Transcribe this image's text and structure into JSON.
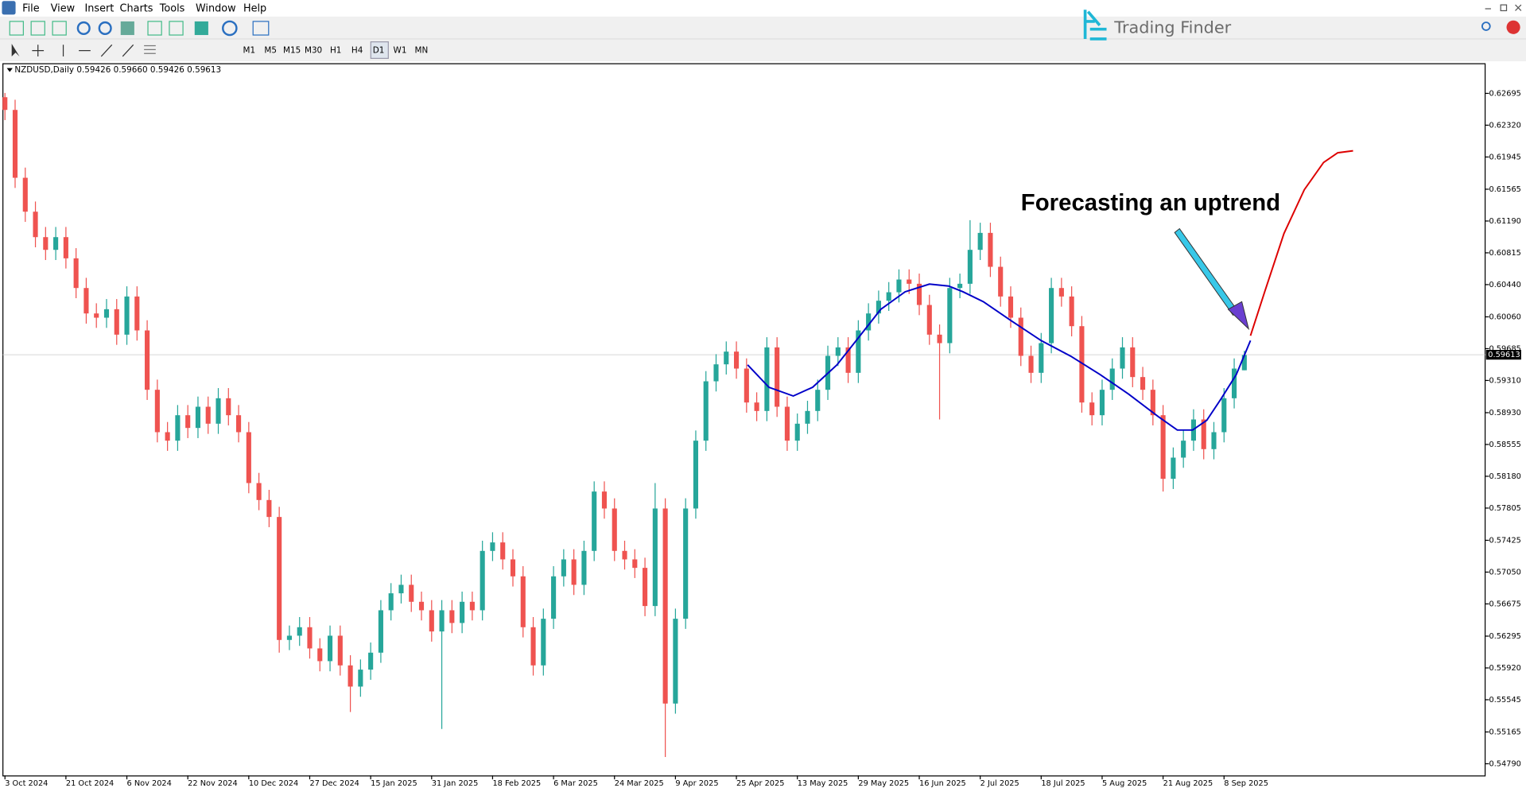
{
  "menu": [
    "File",
    "View",
    "Insert",
    "Charts",
    "Tools",
    "Window",
    "Help"
  ],
  "timeframes": [
    "M1",
    "M5",
    "M15",
    "M30",
    "H1",
    "H4",
    "D1",
    "W1",
    "MN"
  ],
  "logo": "Trading Finder",
  "chart_data": {
    "type": "candlestick",
    "title": "NZDUSD,Daily  0.59426 0.59660 0.59426 0.59613",
    "annotation": "Forecasting an uptrend",
    "up_color": "#26a69a",
    "down_color": "#ef5350",
    "current_price": 0.59613,
    "open": [
      0.6265,
      0.625,
      0.617,
      0.613,
      0.61,
      0.6085,
      0.61,
      0.6075,
      0.604,
      0.601,
      0.6005,
      0.6015,
      0.5985,
      0.603,
      0.599,
      0.592,
      0.587,
      0.586,
      0.589,
      0.5875,
      0.59,
      0.588,
      0.591,
      0.589,
      0.587,
      0.581,
      0.579,
      0.577,
      0.5625,
      0.563,
      0.564,
      0.5615,
      0.56,
      0.563,
      0.5595,
      0.557,
      0.559,
      0.561,
      0.566,
      0.568,
      0.569,
      0.567,
      0.566,
      0.5635,
      0.566,
      0.5645,
      0.567,
      0.566,
      0.573,
      0.574,
      0.572,
      0.57,
      0.564,
      0.5595,
      0.565,
      0.57,
      0.572,
      0.569,
      0.573,
      0.58,
      0.578,
      0.573,
      0.572,
      0.571,
      0.5665,
      0.578,
      0.555,
      0.565,
      0.578,
      0.586,
      0.593,
      0.595,
      0.5965,
      0.5945,
      0.5905,
      0.5895,
      0.597,
      0.59,
      0.586,
      0.588,
      0.5895,
      0.592,
      0.596,
      0.597,
      0.594,
      0.599,
      0.601,
      0.6025,
      0.6035,
      0.605,
      0.6045,
      0.602,
      0.5985,
      0.5975,
      0.604,
      0.6045,
      0.6085,
      0.6105,
      0.6065,
      0.603,
      0.6005,
      0.596,
      0.594,
      0.5975,
      0.604,
      0.603,
      0.5995,
      0.5905,
      0.589,
      0.592,
      0.5945,
      0.597,
      0.5935,
      0.592,
      0.589,
      0.5815,
      0.584,
      0.586,
      0.5885,
      0.585,
      0.587,
      0.591,
      0.5943
    ],
    "high": [
      0.627,
      0.6262,
      0.6182,
      0.6142,
      0.6112,
      0.6112,
      0.6112,
      0.6087,
      0.6052,
      0.6022,
      0.6027,
      0.6027,
      0.6042,
      0.6042,
      0.6002,
      0.5932,
      0.5882,
      0.5902,
      0.5902,
      0.5912,
      0.5912,
      0.5922,
      0.5922,
      0.5902,
      0.5882,
      0.5822,
      0.5802,
      0.5782,
      0.5642,
      0.5652,
      0.5652,
      0.5627,
      0.5642,
      0.5642,
      0.5607,
      0.5602,
      0.5622,
      0.5672,
      0.5692,
      0.5702,
      0.5702,
      0.5682,
      0.5672,
      0.5672,
      0.5672,
      0.5682,
      0.5682,
      0.5742,
      0.5752,
      0.5752,
      0.5732,
      0.5712,
      0.5652,
      0.5662,
      0.5712,
      0.5732,
      0.5732,
      0.5742,
      0.5812,
      0.5812,
      0.5792,
      0.5742,
      0.5732,
      0.5722,
      0.581,
      0.5792,
      0.5662,
      0.5792,
      0.5872,
      0.5942,
      0.5962,
      0.5977,
      0.5977,
      0.5957,
      0.5917,
      0.5982,
      0.5982,
      0.5912,
      0.5892,
      0.5907,
      0.5932,
      0.5972,
      0.5982,
      0.5982,
      0.6002,
      0.6022,
      0.6037,
      0.6047,
      0.6062,
      0.6062,
      0.6057,
      0.6032,
      0.5997,
      0.6052,
      0.6057,
      0.612,
      0.6117,
      0.6117,
      0.6077,
      0.6042,
      0.6017,
      0.5972,
      0.5987,
      0.6052,
      0.6052,
      0.6042,
      0.6007,
      0.5917,
      0.5932,
      0.5957,
      0.5982,
      0.5982,
      0.5947,
      0.5932,
      0.5902,
      0.5852,
      0.5872,
      0.5897,
      0.5897,
      0.5882,
      0.5922,
      0.5957,
      0.5966
    ],
    "low": [
      0.6238,
      0.6158,
      0.6118,
      0.6088,
      0.6073,
      0.6073,
      0.6063,
      0.6028,
      0.5998,
      0.5993,
      0.5993,
      0.5973,
      0.5973,
      0.5978,
      0.5908,
      0.5858,
      0.5848,
      0.5848,
      0.5863,
      0.5863,
      0.5868,
      0.5868,
      0.5878,
      0.5858,
      0.5798,
      0.5778,
      0.5758,
      0.561,
      0.5613,
      0.5618,
      0.5603,
      0.5588,
      0.5588,
      0.5583,
      0.554,
      0.5558,
      0.5578,
      0.5598,
      0.5648,
      0.5668,
      0.5658,
      0.5648,
      0.5623,
      0.552,
      0.5633,
      0.5633,
      0.5648,
      0.5648,
      0.5718,
      0.5708,
      0.5688,
      0.5628,
      0.5583,
      0.5583,
      0.5638,
      0.5688,
      0.5678,
      0.5678,
      0.5718,
      0.5768,
      0.5718,
      0.5708,
      0.5698,
      0.5653,
      0.5653,
      0.5487,
      0.5538,
      0.5638,
      0.5768,
      0.5848,
      0.5918,
      0.5938,
      0.5933,
      0.5893,
      0.5883,
      0.5883,
      0.5888,
      0.5848,
      0.5848,
      0.5868,
      0.5883,
      0.5908,
      0.5948,
      0.5928,
      0.5928,
      0.5978,
      0.5998,
      0.6013,
      0.6023,
      0.6033,
      0.6008,
      0.5973,
      0.5885,
      0.5963,
      0.6028,
      0.6033,
      0.6073,
      0.6053,
      0.6018,
      0.5993,
      0.5948,
      0.5928,
      0.5928,
      0.5963,
      0.6018,
      0.5983,
      0.5893,
      0.5878,
      0.5878,
      0.5908,
      0.5933,
      0.5923,
      0.5908,
      0.5878,
      0.58,
      0.5803,
      0.5828,
      0.5848,
      0.5838,
      0.5838,
      0.5858,
      0.5898,
      0.5943
    ],
    "close": [
      0.625,
      0.617,
      0.613,
      0.61,
      0.6085,
      0.61,
      0.6075,
      0.604,
      0.601,
      0.6005,
      0.6015,
      0.5985,
      0.603,
      0.599,
      0.592,
      0.587,
      0.586,
      0.589,
      0.5875,
      0.59,
      0.588,
      0.591,
      0.589,
      0.587,
      0.581,
      0.579,
      0.577,
      0.5625,
      0.563,
      0.564,
      0.5615,
      0.56,
      0.563,
      0.5595,
      0.557,
      0.559,
      0.561,
      0.566,
      0.568,
      0.569,
      0.567,
      0.566,
      0.5635,
      0.566,
      0.5645,
      0.567,
      0.566,
      0.573,
      0.574,
      0.572,
      0.57,
      0.564,
      0.5595,
      0.565,
      0.57,
      0.572,
      0.569,
      0.573,
      0.58,
      0.578,
      0.573,
      0.572,
      0.571,
      0.5665,
      0.578,
      0.555,
      0.565,
      0.578,
      0.586,
      0.593,
      0.595,
      0.5965,
      0.5945,
      0.5905,
      0.5895,
      0.597,
      0.59,
      0.586,
      0.588,
      0.5895,
      0.592,
      0.596,
      0.597,
      0.594,
      0.599,
      0.601,
      0.6025,
      0.6035,
      0.605,
      0.6045,
      0.602,
      0.5985,
      0.5975,
      0.604,
      0.6045,
      0.6085,
      0.6105,
      0.6065,
      0.603,
      0.6005,
      0.596,
      0.594,
      0.5975,
      0.604,
      0.603,
      0.5995,
      0.5905,
      0.589,
      0.592,
      0.5945,
      0.597,
      0.5935,
      0.592,
      0.589,
      0.5815,
      0.584,
      0.586,
      0.5885,
      0.585,
      0.587,
      0.591,
      0.5945,
      0.5961
    ],
    "lines": [
      {
        "color": "#0000c8",
        "x": [
          73.1,
          75.2,
          77.6,
          79.5,
          81.9,
          83.8,
          86.2,
          88.6,
          91.0,
          92.9,
          94.3,
          96.3,
          99.1,
          102.0,
          104.9,
          107.8,
          110.6,
          113.5,
          115.4,
          116.9,
          118.3,
          119.7,
          121.2,
          122.6
        ],
        "values": [
          0.59494,
          0.5923,
          0.59127,
          0.5923,
          0.59494,
          0.59781,
          0.60148,
          0.60355,
          0.60446,
          0.60423,
          0.60355,
          0.6024,
          0.6001,
          0.59781,
          0.59597,
          0.59379,
          0.5915,
          0.58886,
          0.58725,
          0.58725,
          0.5884,
          0.59092,
          0.59379,
          0.59781
        ]
      },
      {
        "color": "#dd0000",
        "x": [
          122.6,
          124.0,
          125.9,
          127.9,
          129.8,
          131.2,
          132.7
        ],
        "values": [
          0.59838,
          0.60355,
          0.61043,
          0.61559,
          0.6188,
          0.61995,
          0.62018
        ]
      }
    ],
    "xlim": [
      -0.2,
      145.7
    ],
    "ylim": [
      0.54652,
      0.63039
    ],
    "xticks": [
      {
        "value": 0,
        "label": "3 Oct 2024"
      },
      {
        "value": 6,
        "label": "21 Oct 2024"
      },
      {
        "value": 12,
        "label": "6 Nov 2024"
      },
      {
        "value": 18,
        "label": "22 Nov 2024"
      },
      {
        "value": 24,
        "label": "10 Dec 2024"
      },
      {
        "value": 30,
        "label": "27 Dec 2024"
      },
      {
        "value": 36,
        "label": "15 Jan 2025"
      },
      {
        "value": 42,
        "label": "31 Jan 2025"
      },
      {
        "value": 48,
        "label": "18 Feb 2025"
      },
      {
        "value": 54,
        "label": "6 Mar 2025"
      },
      {
        "value": 60,
        "label": "24 Mar 2025"
      },
      {
        "value": 66,
        "label": "9 Apr 2025"
      },
      {
        "value": 72,
        "label": "25 Apr 2025"
      },
      {
        "value": 78,
        "label": "13 May 2025"
      },
      {
        "value": 84,
        "label": "29 May 2025"
      },
      {
        "value": 90,
        "label": "16 Jun 2025"
      },
      {
        "value": 96,
        "label": "2 Jul 2025"
      },
      {
        "value": 102,
        "label": "18 Jul 2025"
      },
      {
        "value": 108,
        "label": "5 Aug 2025"
      },
      {
        "value": 114,
        "label": "21 Aug 2025"
      },
      {
        "value": 120,
        "label": "8 Sep 2025"
      }
    ],
    "yticks": [
      {
        "value": 0.62695,
        "label": "0.62695"
      },
      {
        "value": 0.6232,
        "label": "0.62320"
      },
      {
        "value": 0.61945,
        "label": "0.61945"
      },
      {
        "value": 0.61565,
        "label": "0.61565"
      },
      {
        "value": 0.6119,
        "label": "0.61190"
      },
      {
        "value": 0.60815,
        "label": "0.60815"
      },
      {
        "value": 0.6044,
        "label": "0.60440"
      },
      {
        "value": 0.6006,
        "label": "0.60060"
      },
      {
        "value": 0.59685,
        "label": "0.59685"
      },
      {
        "value": 0.5931,
        "label": "0.59310"
      },
      {
        "value": 0.5893,
        "label": "0.58930"
      },
      {
        "value": 0.58555,
        "label": "0.58555"
      },
      {
        "value": 0.5818,
        "label": "0.58180"
      },
      {
        "value": 0.57805,
        "label": "0.57805"
      },
      {
        "value": 0.57425,
        "label": "0.57425"
      },
      {
        "value": 0.5705,
        "label": "0.57050"
      },
      {
        "value": 0.56675,
        "label": "0.56675"
      },
      {
        "value": 0.56295,
        "label": "0.56295"
      },
      {
        "value": 0.5592,
        "label": "0.55920"
      },
      {
        "value": 0.55545,
        "label": "0.55545"
      },
      {
        "value": 0.55165,
        "label": "0.55165"
      },
      {
        "value": 0.5479,
        "label": "0.54790"
      }
    ]
  }
}
